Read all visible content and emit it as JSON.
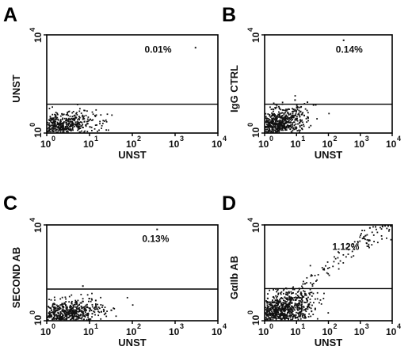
{
  "chart_data": [
    {
      "type": "scatter",
      "panel": "A",
      "xlabel": "UNST",
      "ylabel": "UNST",
      "scale": "log",
      "xlim": [
        1,
        10000
      ],
      "ylim": [
        1,
        10000
      ],
      "x_ticks": [
        {
          "base": "10",
          "exp": "0"
        },
        {
          "base": "10",
          "exp": "1"
        },
        {
          "base": "10",
          "exp": "2"
        },
        {
          "base": "10",
          "exp": "3"
        },
        {
          "base": "10",
          "exp": "4"
        }
      ],
      "y_ticks": [
        {
          "base": "10",
          "exp": "0"
        },
        {
          "base": "10",
          "exp": "4"
        }
      ],
      "gate_y": 15,
      "annotation": "0.01%",
      "annotation_pos": [
        400,
        1900
      ],
      "cluster": {
        "center": [
          2,
          1.8
        ],
        "spread": [
          0.42,
          0.28
        ],
        "n": 650,
        "tilt": 0.25
      },
      "outliers": [
        [
          3000,
          3000
        ]
      ]
    },
    {
      "type": "scatter",
      "panel": "B",
      "xlabel": "UNST",
      "ylabel": "IgG CTRL",
      "scale": "log",
      "xlim": [
        1,
        10000
      ],
      "ylim": [
        1,
        10000
      ],
      "x_ticks": [
        {
          "base": "10",
          "exp": "0"
        },
        {
          "base": "10",
          "exp": "1"
        },
        {
          "base": "10",
          "exp": "2"
        },
        {
          "base": "10",
          "exp": "3"
        },
        {
          "base": "10",
          "exp": "4"
        }
      ],
      "y_ticks": [
        {
          "base": "10",
          "exp": "0"
        },
        {
          "base": "10",
          "exp": "4"
        }
      ],
      "gate_y": 15,
      "annotation": "0.14%",
      "annotation_pos": [
        450,
        1850
      ],
      "cluster": {
        "center": [
          2.6,
          2.2
        ],
        "spread": [
          0.45,
          0.32
        ],
        "n": 750,
        "tilt": 0.3
      },
      "outliers": [
        [
          300,
          6000
        ],
        [
          22,
          18
        ],
        [
          40,
          14
        ],
        [
          12,
          11
        ],
        [
          9,
          22
        ],
        [
          8,
          9
        ]
      ]
    },
    {
      "type": "scatter",
      "panel": "C",
      "xlabel": "UNST",
      "ylabel": "SECOND AB",
      "scale": "log",
      "xlim": [
        1,
        10000
      ],
      "ylim": [
        1,
        10000
      ],
      "x_ticks": [
        {
          "base": "10",
          "exp": "0"
        },
        {
          "base": "10",
          "exp": "1"
        },
        {
          "base": "10",
          "exp": "2"
        },
        {
          "base": "10",
          "exp": "3"
        },
        {
          "base": "10",
          "exp": "4"
        }
      ],
      "y_ticks": [
        {
          "base": "10",
          "exp": "0"
        },
        {
          "base": "10",
          "exp": "4"
        }
      ],
      "gate_y": 21,
      "annotation": "0.13%",
      "annotation_pos": [
        350,
        1950
      ],
      "cluster": {
        "center": [
          2.5,
          1.8
        ],
        "spread": [
          0.45,
          0.3
        ],
        "n": 750,
        "tilt": 0.35
      },
      "outliers": [
        [
          380,
          6500
        ],
        [
          7,
          28
        ],
        [
          14,
          7
        ]
      ]
    },
    {
      "type": "scatter",
      "panel": "D",
      "xlabel": "UNST",
      "ylabel": "GαIIb AB",
      "scale": "log",
      "xlim": [
        1,
        10000
      ],
      "ylim": [
        1,
        10000
      ],
      "x_ticks": [
        {
          "base": "10",
          "exp": "0"
        },
        {
          "base": "10",
          "exp": "1"
        },
        {
          "base": "10",
          "exp": "2"
        },
        {
          "base": "10",
          "exp": "3"
        },
        {
          "base": "10",
          "exp": "4"
        }
      ],
      "y_ticks": [
        {
          "base": "10",
          "exp": "0"
        },
        {
          "base": "10",
          "exp": "4"
        }
      ],
      "gate_y": 22,
      "annotation": "1.12%",
      "annotation_pos": [
        350,
        900
      ],
      "cluster": {
        "center": [
          3,
          2.4
        ],
        "spread": [
          0.5,
          0.38
        ],
        "n": 1000,
        "tilt": 0.4
      },
      "trail": {
        "from": [
          6,
          5
        ],
        "to": [
          9000,
          8500
        ],
        "n": 110,
        "jitter": 0.22
      },
      "outliers": [
        [
          9000,
          9000
        ],
        [
          5000,
          8800
        ],
        [
          3000,
          8300
        ],
        [
          2000,
          7500
        ],
        [
          7500,
          9000
        ],
        [
          6000,
          9100
        ]
      ]
    }
  ]
}
